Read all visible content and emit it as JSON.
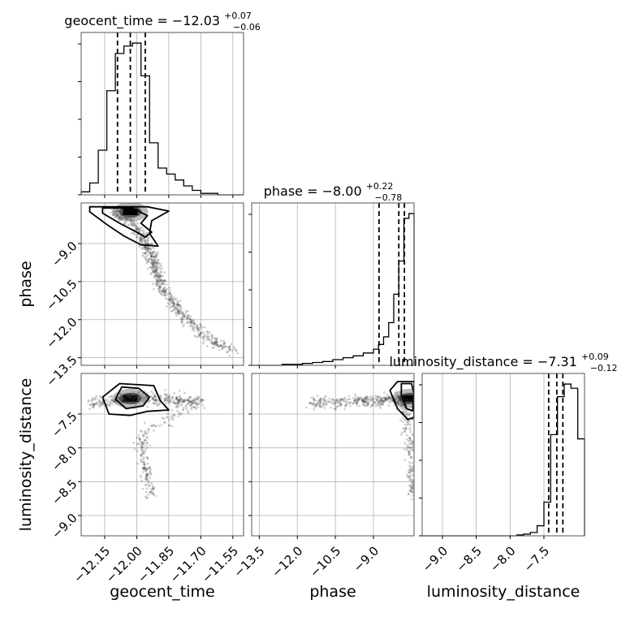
{
  "chart_data": {
    "type": "corner",
    "grid": true,
    "params": [
      {
        "key": "geocent_time",
        "label": "geocent_time",
        "range": [
          -12.26,
          -11.5
        ],
        "ticks": [
          -12.15,
          -12.0,
          -11.85,
          -11.7,
          -11.55
        ],
        "tick_labels": [
          "−12.15",
          "−12.00",
          "−11.85",
          "−11.70",
          "−11.55"
        ],
        "title": "geocent_time = −12.03",
        "title_sup": "+0.07",
        "title_sub": "−0.06",
        "quantiles": [
          -12.09,
          -12.03,
          -11.96
        ],
        "hist": {
          "edges": [
            -12.26,
            -12.22,
            -12.18,
            -12.14,
            -12.1,
            -12.06,
            -12.02,
            -11.98,
            -11.94,
            -11.9,
            -11.86,
            -11.82,
            -11.78,
            -11.74,
            -11.7,
            -11.66,
            -11.62,
            -11.58,
            -11.54,
            -11.5
          ],
          "counts": [
            2,
            8,
            30,
            70,
            95,
            100,
            102,
            80,
            35,
            18,
            14,
            10,
            6,
            3,
            1,
            1,
            0,
            0,
            0
          ]
        }
      },
      {
        "key": "phase",
        "label": "phase",
        "range": [
          -13.8,
          -7.4
        ],
        "ticks": [
          -13.5,
          -12.0,
          -10.5,
          -9.0
        ],
        "tick_labels": [
          "−13.5",
          "−12.0",
          "−10.5",
          "−9.0"
        ],
        "title": "phase = −8.00",
        "title_sup": "+0.22",
        "title_sub": "−0.78",
        "quantiles": [
          -8.78,
          -8.0,
          -7.78
        ],
        "hist": {
          "edges": [
            -13.8,
            -13.4,
            -13.0,
            -12.6,
            -12.2,
            -11.8,
            -11.4,
            -11.0,
            -10.6,
            -10.2,
            -9.8,
            -9.4,
            -9.0,
            -8.8,
            -8.6,
            -8.4,
            -8.2,
            -8.0,
            -7.8,
            -7.6,
            -7.4
          ],
          "counts": [
            0,
            0,
            0,
            1,
            1,
            2,
            3,
            4,
            6,
            8,
            10,
            13,
            17,
            22,
            30,
            45,
            75,
            110,
            155,
            160
          ]
        }
      },
      {
        "key": "luminosity_distance",
        "label": "luminosity_distance",
        "range": [
          -9.3,
          -6.9
        ],
        "ticks": [
          -9.0,
          -8.5,
          -8.0,
          -7.5
        ],
        "tick_labels": [
          "−9.0",
          "−8.5",
          "−8.0",
          "−7.5"
        ],
        "title": "luminosity_distance = −7.31",
        "title_sup": "+0.09",
        "title_sub": "−0.12",
        "quantiles": [
          -7.43,
          -7.31,
          -7.22
        ],
        "hist": {
          "edges": [
            -9.3,
            -9.2,
            -9.1,
            -9.0,
            -8.9,
            -8.8,
            -8.7,
            -8.6,
            -8.5,
            -8.4,
            -8.3,
            -8.2,
            -8.1,
            -8.0,
            -7.9,
            -7.8,
            -7.7,
            -7.6,
            -7.5,
            -7.4,
            -7.3,
            -7.2,
            -7.1,
            -7.0,
            -6.9
          ],
          "counts": [
            0,
            0,
            0,
            0,
            0,
            0,
            0,
            0,
            0,
            0,
            0,
            0,
            0,
            0,
            1,
            2,
            4,
            12,
            40,
            120,
            165,
            180,
            175,
            115
          ]
        }
      }
    ],
    "density_2d": [
      {
        "x": "geocent_time",
        "y": "phase",
        "peak": [
          -12.03,
          -7.75
        ],
        "ridge": [
          [
            -12.12,
            -7.65
          ],
          [
            -12.02,
            -8.2
          ],
          [
            -11.96,
            -8.9
          ],
          [
            -11.94,
            -9.3
          ],
          [
            -11.92,
            -9.8
          ],
          [
            -11.9,
            -10.3
          ],
          [
            -11.87,
            -10.9
          ],
          [
            -11.82,
            -11.5
          ],
          [
            -11.75,
            -12.1
          ],
          [
            -11.66,
            -12.8
          ],
          [
            -11.55,
            -13.2
          ]
        ],
        "contours": [
          [
            [
              -12.16,
              -7.8
            ],
            [
              -12.08,
              -8.2
            ],
            [
              -12.0,
              -8.55
            ],
            [
              -11.96,
              -8.75
            ],
            [
              -11.93,
              -8.55
            ],
            [
              -11.98,
              -8.2
            ],
            [
              -11.95,
              -7.9
            ],
            [
              -12.02,
              -7.6
            ],
            [
              -12.16,
              -7.6
            ]
          ],
          [
            [
              -12.22,
              -7.75
            ],
            [
              -12.14,
              -8.25
            ],
            [
              -12.06,
              -8.7
            ],
            [
              -11.98,
              -9.05
            ],
            [
              -11.9,
              -9.1
            ],
            [
              -11.94,
              -8.6
            ],
            [
              -11.93,
              -8.1
            ],
            [
              -11.85,
              -7.72
            ],
            [
              -11.95,
              -7.55
            ],
            [
              -12.22,
              -7.55
            ]
          ]
        ]
      },
      {
        "x": "geocent_time",
        "y": "luminosity_distance",
        "peak": [
          -12.03,
          -7.27
        ],
        "ridge": [
          [
            -12.22,
            -7.35
          ],
          [
            -12.1,
            -7.3
          ],
          [
            -12.0,
            -7.25
          ],
          [
            -11.9,
            -7.28
          ],
          [
            -11.8,
            -7.3
          ],
          [
            -11.7,
            -7.32
          ],
          [
            -11.98,
            -7.8
          ],
          [
            -11.96,
            -8.3
          ],
          [
            -11.94,
            -8.7
          ]
        ],
        "contours": [
          [
            [
              -12.1,
              -7.28
            ],
            [
              -12.05,
              -7.42
            ],
            [
              -11.97,
              -7.38
            ],
            [
              -11.94,
              -7.25
            ],
            [
              -11.99,
              -7.12
            ],
            [
              -12.07,
              -7.1
            ]
          ],
          [
            [
              -12.16,
              -7.25
            ],
            [
              -12.13,
              -7.5
            ],
            [
              -12.03,
              -7.52
            ],
            [
              -11.95,
              -7.46
            ],
            [
              -11.85,
              -7.44
            ],
            [
              -11.89,
              -7.3
            ],
            [
              -11.92,
              -7.08
            ],
            [
              -12.08,
              -7.05
            ]
          ]
        ]
      },
      {
        "x": "phase",
        "y": "luminosity_distance",
        "peak": [
          -7.55,
          -7.27
        ],
        "ridge": [
          [
            -11.5,
            -7.35
          ],
          [
            -10.5,
            -7.32
          ],
          [
            -9.5,
            -7.3
          ],
          [
            -8.8,
            -7.3
          ],
          [
            -8.2,
            -7.28
          ],
          [
            -7.8,
            -7.3
          ],
          [
            -7.6,
            -7.7
          ],
          [
            -7.5,
            -8.3
          ],
          [
            -7.45,
            -8.7
          ]
        ],
        "contours": [
          [
            [
              -7.9,
              -7.22
            ],
            [
              -7.7,
              -7.42
            ],
            [
              -7.45,
              -7.45
            ],
            [
              -7.4,
              -7.2
            ],
            [
              -7.5,
              -7.05
            ],
            [
              -7.9,
              -7.05
            ]
          ],
          [
            [
              -8.35,
              -7.15
            ],
            [
              -8.05,
              -7.42
            ],
            [
              -7.65,
              -7.58
            ],
            [
              -7.4,
              -7.55
            ],
            [
              -7.4,
              -7.02
            ],
            [
              -8.05,
              -7.02
            ]
          ]
        ]
      }
    ]
  }
}
